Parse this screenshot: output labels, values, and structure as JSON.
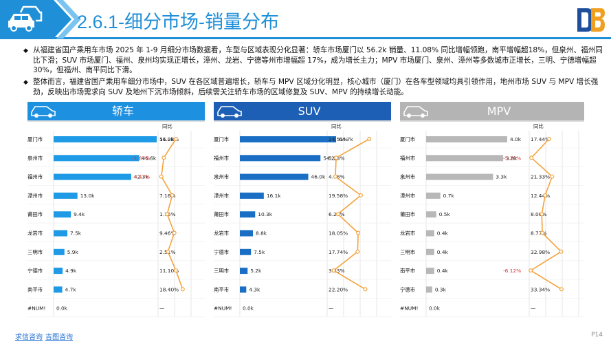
{
  "header": {
    "title": "2.6.1-细分市场-销量分布",
    "car_icon": "car-icon",
    "logo_icon": "db-logo-icon"
  },
  "bullets": [
    {
      "text": "从福建省国产乘用车市场 2025 年 1-9 月细分市场数据看，车型与区域表现分化显著：轿车市场厦门以 56.2k 销量、11.08% 同比增幅领跑，南平增幅超18%，但泉州、福州同比下滑；SUV 市场厦门、福州、泉州均实现正增长，漳州、龙岩、宁德等州市增幅超 17%，成为增长主力；MPV 市场厦门、泉州、漳州等多数城市正增长，三明、宁德增幅超 30%，但福州、南平同比下滑。"
    },
    {
      "text": "整体而言，福建省国产乘用车细分市场中，SUV 在各区域普遍增长，轿车与 MPV 区域分化明显，核心城市（厦门）在各车型领域均具引领作用，地州市场 SUV 与 MPV 增长强劲，反映出市场需求向 SUV 及地州下沉市场倾斜，后续需关注轿车市场的区域修复及 SUV、MPV 的持续增长动能。"
    }
  ],
  "colors": {
    "accent": "#1f8fd8",
    "bar_sedan": "#1e9ae6",
    "bar_suv": "#1a6fc4",
    "bar_mpv": "#b8b8b8",
    "banner_sedan": "#1e90e0",
    "banner_suv": "#1c5fb4",
    "banner_mpv": "#b4b4b4",
    "line": "#f3a33c",
    "negative": "#e03030"
  },
  "yoy_header": "同比",
  "chart_data": [
    {
      "type": "bar",
      "title": "轿车",
      "icon": "sedan-car-icon",
      "categories": [
        "厦门市",
        "泉州市",
        "福州市",
        "漳州市",
        "莆田市",
        "龙岩市",
        "三明市",
        "宁德市",
        "南平市",
        "#NUM!"
      ],
      "values": [
        56.2,
        46.6,
        42.3,
        13.0,
        9.4,
        7.5,
        5.9,
        4.9,
        4.7,
        0.0
      ],
      "value_labels": [
        "56.2k",
        "46.6k",
        "42.3k",
        "13.0k",
        "9.4k",
        "7.5k",
        "5.9k",
        "4.9k",
        "4.7k",
        "0.0k"
      ],
      "yoy": [
        11.08,
        -1.87,
        -4.47,
        7.16,
        1.76,
        9.46,
        2.51,
        11.1,
        18.4,
        null
      ],
      "yoy_labels": [
        "11.08%",
        "-1.87%",
        "-4.47%",
        "7.16%",
        "1.76%",
        "9.46%",
        "2.51%",
        "11.10%",
        "18.40%",
        "—"
      ]
    },
    {
      "type": "bar",
      "title": "SUV",
      "icon": "suv-car-icon",
      "categories": [
        "厦门市",
        "福州市",
        "泉州市",
        "漳州市",
        "莆田市",
        "龙岩市",
        "宁德市",
        "三明市",
        "南平市",
        "#NUM!"
      ],
      "values": [
        64.7,
        54.2,
        46.0,
        16.1,
        10.3,
        8.8,
        7.5,
        5.2,
        4.3,
        0.0
      ],
      "value_labels": [
        "64.7k",
        "54.2k",
        "46.0k",
        "16.1k",
        "10.3k",
        "8.8k",
        "7.5k",
        "5.2k",
        "4.3k",
        "0.0k"
      ],
      "yoy": [
        24.51,
        5.23,
        4.78,
        19.58,
        6.25,
        18.05,
        17.74,
        3.83,
        22.2,
        null
      ],
      "yoy_labels": [
        "24.51%",
        "5.23%",
        "4.78%",
        "19.58%",
        "6.25%",
        "18.05%",
        "17.74%",
        "3.83%",
        "22.20%",
        "—"
      ]
    },
    {
      "type": "bar",
      "title": "MPV",
      "icon": "mpv-car-icon",
      "categories": [
        "厦门市",
        "福州市",
        "泉州市",
        "漳州市",
        "莆田市",
        "龙岩市",
        "三明市",
        "南平市",
        "宁德市",
        "#NUM!"
      ],
      "values": [
        4.0,
        3.8,
        3.3,
        0.7,
        0.5,
        0.4,
        0.4,
        0.4,
        0.3,
        0.0
      ],
      "value_labels": [
        "4.0k",
        "3.8k",
        "3.3k",
        "0.7k",
        "0.5k",
        "0.4k",
        "0.4k",
        "0.4k",
        "0.3k",
        "0.0k"
      ],
      "yoy": [
        17.44,
        -5.2,
        21.33,
        12.44,
        8.06,
        8.77,
        32.98,
        -6.12,
        33.34,
        null
      ],
      "yoy_labels": [
        "17.44%",
        "-5.20%",
        "21.33%",
        "12.44%",
        "8.06%",
        "8.77%",
        "32.98%",
        "-6.12%",
        "33.34%",
        "—"
      ]
    }
  ],
  "footer": {
    "link1": "求信咨询",
    "link2": "吉图咨询",
    "page": "P14"
  }
}
